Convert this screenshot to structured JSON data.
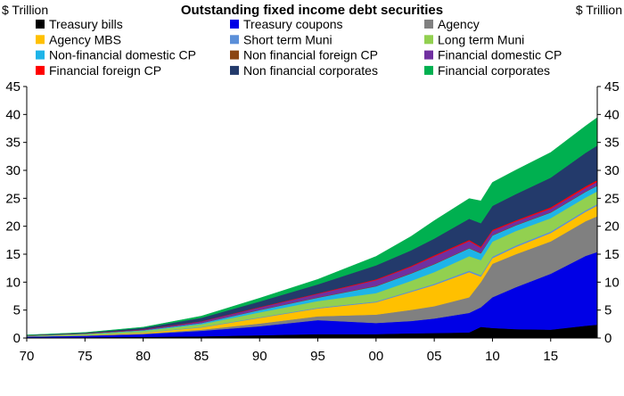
{
  "chart_data": {
    "type": "area",
    "stacked": true,
    "title": "Outstanding fixed income debt securities",
    "ylabel_left": "$ Trillion",
    "ylabel_right": "$ Trillion",
    "ylim": [
      0,
      45
    ],
    "yticks": [
      0,
      5,
      10,
      15,
      20,
      25,
      30,
      35,
      40,
      45
    ],
    "xlim": [
      1970,
      2019
    ],
    "xticks": [
      1970,
      1975,
      1980,
      1985,
      1990,
      1995,
      2000,
      2005,
      2010,
      2015
    ],
    "xtick_labels": [
      "70",
      "75",
      "80",
      "85",
      "90",
      "95",
      "00",
      "05",
      "10",
      "15"
    ],
    "legend_position": "top",
    "x": [
      1970,
      1975,
      1980,
      1985,
      1990,
      1995,
      2000,
      2003,
      2005,
      2008,
      2009,
      2010,
      2012,
      2015,
      2018,
      2019
    ],
    "series": [
      {
        "name": "Treasury bills",
        "color": "#000000",
        "values": [
          0.1,
          0.15,
          0.2,
          0.3,
          0.5,
          0.7,
          0.7,
          0.85,
          0.9,
          1.0,
          2.0,
          1.8,
          1.6,
          1.5,
          2.2,
          2.4
        ]
      },
      {
        "name": "Treasury coupons",
        "color": "#0000E6",
        "values": [
          0.15,
          0.25,
          0.5,
          1.0,
          1.6,
          2.5,
          2.0,
          2.2,
          2.6,
          3.5,
          3.5,
          5.5,
          7.5,
          10.0,
          12.5,
          13.0
        ]
      },
      {
        "name": "Agency",
        "color": "#808080",
        "values": [
          0.03,
          0.05,
          0.1,
          0.2,
          0.5,
          0.7,
          1.5,
          2.0,
          2.2,
          2.8,
          4.5,
          6.0,
          5.9,
          5.8,
          6.2,
          6.4
        ]
      },
      {
        "name": "Agency MBS",
        "color": "#FFC000",
        "values": [
          0.0,
          0.05,
          0.15,
          0.4,
          1.0,
          1.4,
          2.2,
          3.2,
          3.8,
          4.5,
          1.0,
          1.0,
          1.3,
          1.5,
          1.7,
          1.9
        ]
      },
      {
        "name": "Short term Muni",
        "color": "#5B8FD9",
        "values": [
          0.02,
          0.03,
          0.05,
          0.08,
          0.1,
          0.12,
          0.15,
          0.18,
          0.2,
          0.25,
          0.25,
          0.25,
          0.25,
          0.25,
          0.25,
          0.25
        ]
      },
      {
        "name": "Long term Muni",
        "color": "#92D050",
        "values": [
          0.1,
          0.2,
          0.3,
          0.5,
          0.9,
          1.2,
          1.5,
          1.8,
          2.1,
          2.6,
          2.7,
          2.7,
          2.6,
          2.4,
          2.3,
          2.3
        ]
      },
      {
        "name": "Non-financial domestic CP",
        "color": "#1EB4E8",
        "values": [
          0.03,
          0.05,
          0.1,
          0.2,
          0.4,
          0.6,
          1.2,
          1.3,
          1.4,
          1.4,
          1.2,
          1.1,
          1.0,
          1.0,
          1.0,
          1.0
        ]
      },
      {
        "name": "Non financial foreign CP",
        "color": "#8B4513",
        "values": [
          0.01,
          0.01,
          0.02,
          0.04,
          0.06,
          0.08,
          0.1,
          0.1,
          0.1,
          0.1,
          0.1,
          0.1,
          0.1,
          0.1,
          0.1,
          0.1
        ]
      },
      {
        "name": "Financial domestic CP",
        "color": "#7030A0",
        "values": [
          0.02,
          0.04,
          0.1,
          0.25,
          0.4,
          0.6,
          1.0,
          1.1,
          1.3,
          1.2,
          0.9,
          0.7,
          0.6,
          0.6,
          0.6,
          0.6
        ]
      },
      {
        "name": "Financial foreign CP",
        "color": "#FF0000",
        "values": [
          0.01,
          0.01,
          0.02,
          0.05,
          0.08,
          0.1,
          0.15,
          0.15,
          0.2,
          0.2,
          0.2,
          0.2,
          0.2,
          0.25,
          0.3,
          0.3
        ]
      },
      {
        "name": "Non financial corporates",
        "color": "#233A6B",
        "values": [
          0.05,
          0.1,
          0.3,
          0.6,
          1.0,
          1.6,
          2.5,
          2.8,
          3.0,
          3.8,
          4.2,
          4.3,
          4.7,
          5.3,
          6.0,
          6.2
        ]
      },
      {
        "name": "Financial corporates",
        "color": "#00B050",
        "values": [
          0.02,
          0.05,
          0.1,
          0.3,
          0.6,
          0.9,
          1.6,
          2.5,
          3.2,
          3.6,
          4.0,
          4.2,
          4.3,
          4.5,
          4.8,
          5.0
        ]
      }
    ]
  }
}
